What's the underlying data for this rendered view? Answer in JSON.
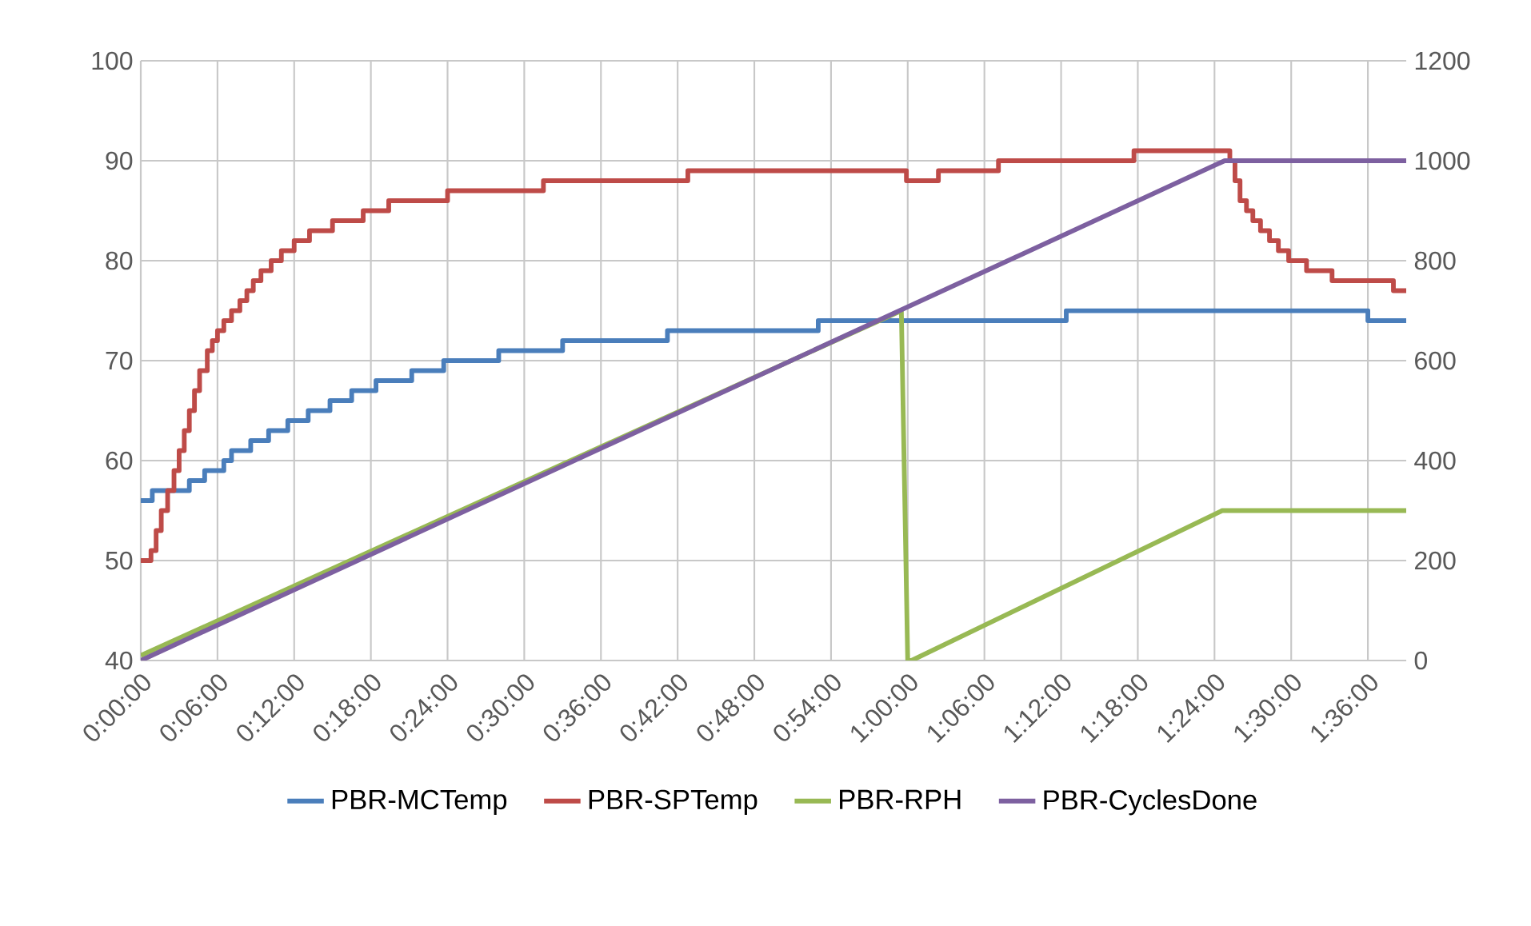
{
  "chart_data": {
    "type": "line",
    "grid": true,
    "legend": "bottom",
    "xlim": [
      0,
      1.65
    ],
    "ylim": [
      40,
      100
    ],
    "y2lim": [
      0,
      1200
    ],
    "yticks": [
      40,
      50,
      60,
      70,
      80,
      90,
      100
    ],
    "y2ticks": [
      0,
      200,
      400,
      600,
      800,
      1000,
      1200
    ],
    "xticks": [
      {
        "value": 0,
        "label": "0:00:00"
      },
      {
        "value": 0.1,
        "label": "0:06:00"
      },
      {
        "value": 0.2,
        "label": "0:12:00"
      },
      {
        "value": 0.3,
        "label": "0:18:00"
      },
      {
        "value": 0.4,
        "label": "0:24:00"
      },
      {
        "value": 0.5,
        "label": "0:30:00"
      },
      {
        "value": 0.6,
        "label": "0:36:00"
      },
      {
        "value": 0.7,
        "label": "0:42:00"
      },
      {
        "value": 0.8,
        "label": "0:48:00"
      },
      {
        "value": 0.9,
        "label": "0:54:00"
      },
      {
        "value": 1.0,
        "label": "1:00:00"
      },
      {
        "value": 1.1,
        "label": "1:06:00"
      },
      {
        "value": 1.2,
        "label": "1:12:00"
      },
      {
        "value": 1.3,
        "label": "1:18:00"
      },
      {
        "value": 1.4,
        "label": "1:24:00"
      },
      {
        "value": 1.5,
        "label": "1:30:00"
      },
      {
        "value": 1.6,
        "label": "1:36:00"
      }
    ],
    "series": [
      {
        "name": "PBR-MCTemp",
        "color": "#4a7ebb",
        "type": "step",
        "x": [
          0,
          0.015,
          0.0633,
          0.0833,
          0.1083,
          0.1183,
          0.1433,
          0.1667,
          0.1917,
          0.2183,
          0.2467,
          0.275,
          0.3067,
          0.3533,
          0.395,
          0.4667,
          0.55,
          0.6867,
          0.8833,
          1.2067,
          1.6,
          1.65
        ],
        "values": [
          56,
          57,
          58,
          59,
          60,
          61,
          62,
          63,
          64,
          65,
          66,
          67,
          68,
          69,
          70,
          71,
          72,
          73,
          74,
          75,
          74,
          74
        ]
      },
      {
        "name": "PBR-SPTemp",
        "color": "#be4b48",
        "type": "step",
        "x": [
          0,
          0.0133,
          0.02,
          0.0267,
          0.035,
          0.0433,
          0.05,
          0.0567,
          0.0633,
          0.07,
          0.0767,
          0.0867,
          0.0933,
          0.1,
          0.1083,
          0.1183,
          0.1292,
          0.1383,
          0.1467,
          0.1567,
          0.17,
          0.1833,
          0.2,
          0.22,
          0.25,
          0.29,
          0.3233,
          0.4,
          0.525,
          0.7133,
          0.9983,
          1.04,
          1.1183,
          1.295,
          1.42,
          1.4267,
          1.4333,
          1.4417,
          1.45,
          1.46,
          1.4717,
          1.4833,
          1.4967,
          1.52,
          1.5533,
          1.6333,
          1.65
        ],
        "values": [
          50,
          51,
          53,
          55,
          57,
          59,
          61,
          63,
          65,
          67,
          69,
          71,
          72,
          73,
          74,
          75,
          76,
          77,
          78,
          79,
          80,
          81,
          82,
          83,
          84,
          85,
          86,
          87,
          88,
          89,
          88,
          89,
          90,
          91,
          90,
          88,
          86,
          85,
          84,
          83,
          82,
          81,
          80,
          79,
          78,
          77,
          77
        ]
      },
      {
        "name": "PBR-RPH",
        "color": "#98b954",
        "axis": "y2",
        "x": [
          0,
          0.9917,
          1.0,
          1.005,
          1.41,
          1.65
        ],
        "values": [
          10,
          700,
          0,
          0,
          300,
          300
        ]
      },
      {
        "name": "PBR-CyclesDone",
        "color": "#7d60a0",
        "axis": "y2",
        "x": [
          0,
          1.4133,
          1.65
        ],
        "values": [
          0,
          1000,
          1000
        ]
      }
    ]
  }
}
